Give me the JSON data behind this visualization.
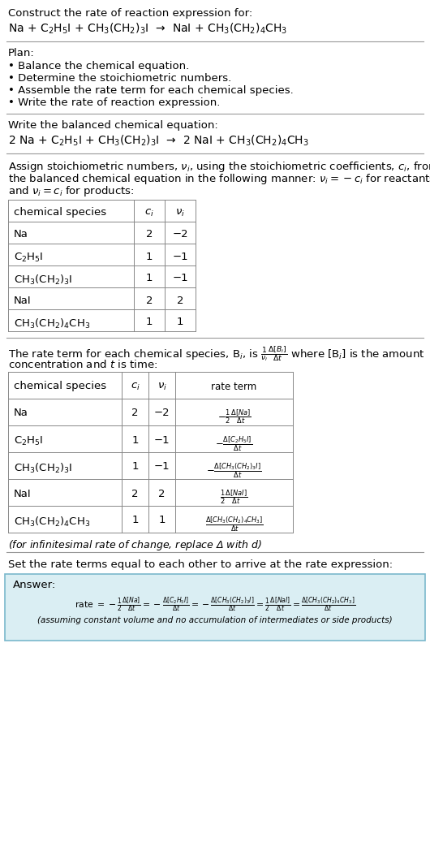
{
  "bg_color": "#ffffff",
  "text_color": "#000000",
  "title_line1": "Construct the rate of reaction expression for:",
  "reaction_unbalanced": "Na + C$_2$H$_5$I + CH$_3$(CH$_2$)$_3$I  →  NaI + CH$_3$(CH$_2$)$_4$CH$_3$",
  "plan_header": "Plan:",
  "plan_items": [
    "• Balance the chemical equation.",
    "• Determine the stoichiometric numbers.",
    "• Assemble the rate term for each chemical species.",
    "• Write the rate of reaction expression."
  ],
  "balanced_header": "Write the balanced chemical equation:",
  "reaction_balanced": "2 Na + C$_2$H$_5$I + CH$_3$(CH$_2$)$_3$I  →  2 NaI + CH$_3$(CH$_2$)$_4$CH$_3$",
  "stoich_header_lines": [
    "Assign stoichiometric numbers, $\\nu_i$, using the stoichiometric coefficients, $c_i$, from",
    "the balanced chemical equation in the following manner: $\\nu_i = -c_i$ for reactants",
    "and $\\nu_i = c_i$ for products:"
  ],
  "table1_headers": [
    "chemical species",
    "$c_i$",
    "$\\nu_i$"
  ],
  "table1_rows": [
    [
      "Na",
      "2",
      "−2"
    ],
    [
      "C$_2$H$_5$I",
      "1",
      "−1"
    ],
    [
      "CH$_3$(CH$_2$)$_3$I",
      "1",
      "−1"
    ],
    [
      "NaI",
      "2",
      "2"
    ],
    [
      "CH$_3$(CH$_2$)$_4$CH$_3$",
      "1",
      "1"
    ]
  ],
  "rate_text1": "The rate term for each chemical species, B$_i$, is $\\frac{1}{\\nu_i}\\frac{\\Delta[B_i]}{\\Delta t}$ where [B$_i$] is the amount",
  "rate_text2": "concentration and $t$ is time:",
  "table2_headers": [
    "chemical species",
    "$c_i$",
    "$\\nu_i$",
    "rate term"
  ],
  "table2_rows": [
    [
      "Na",
      "2",
      "−2",
      "$-\\frac{1}{2}\\frac{\\Delta[Na]}{\\Delta t}$"
    ],
    [
      "C$_2$H$_5$I",
      "1",
      "−1",
      "$-\\frac{\\Delta[C_2H_5I]}{\\Delta t}$"
    ],
    [
      "CH$_3$(CH$_2$)$_3$I",
      "1",
      "−1",
      "$-\\frac{\\Delta[CH_3(CH_2)_3I]}{\\Delta t}$"
    ],
    [
      "NaI",
      "2",
      "2",
      "$\\frac{1}{2}\\frac{\\Delta[NaI]}{\\Delta t}$"
    ],
    [
      "CH$_3$(CH$_2$)$_4$CH$_3$",
      "1",
      "1",
      "$\\frac{\\Delta[CH_3(CH_2)_4CH_3]}{\\Delta t}$"
    ]
  ],
  "infinitesimal_note": "(for infinitesimal rate of change, replace Δ with $d$)",
  "set_rate_text": "Set the rate terms equal to each other to arrive at the rate expression:",
  "answer_label": "Answer:",
  "rate_expression": "rate $= -\\frac{1}{2}\\frac{\\Delta[Na]}{\\Delta t} = -\\frac{\\Delta[C_2H_5I]}{\\Delta t} = -\\frac{\\Delta[CH_3(CH_2)_3I]}{\\Delta t} = \\frac{1}{2}\\frac{\\Delta[NaI]}{\\Delta t} = \\frac{\\Delta[CH_3(CH_2)_4CH_3]}{\\Delta t}$",
  "assuming_note": "(assuming constant volume and no accumulation of intermediates or side products)"
}
